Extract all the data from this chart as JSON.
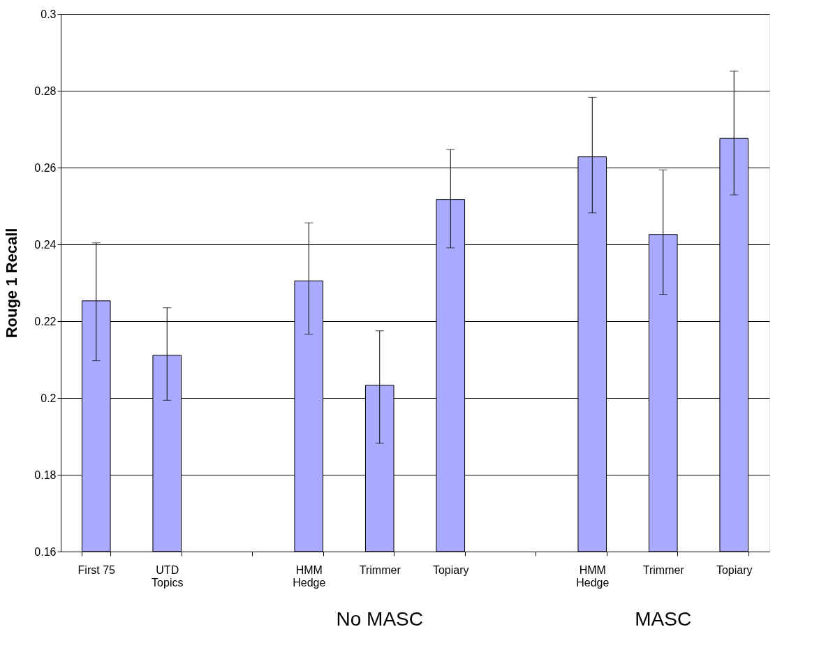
{
  "chart_data": {
    "type": "bar",
    "ylabel": "Rouge 1 Recall",
    "categories": [
      "First 75",
      "UTD Topics",
      null,
      "HMM Hedge",
      "Trimmer",
      "Topiary",
      null,
      "HMM Hedge",
      "Trimmer",
      "Topiary"
    ],
    "values": [
      0.2253,
      0.2111,
      null,
      0.2305,
      0.2033,
      0.2517,
      null,
      0.2628,
      0.2426,
      0.2676
    ],
    "errors": [
      [
        0.2097,
        0.2404
      ],
      [
        0.1994,
        0.2235
      ],
      null,
      [
        0.2166,
        0.2456
      ],
      [
        0.1882,
        0.2175
      ],
      [
        0.2391,
        0.2647
      ],
      null,
      [
        0.2482,
        0.2783
      ],
      [
        0.227,
        0.2594
      ],
      [
        0.2529,
        0.2851
      ]
    ],
    "color": "#aaaaff",
    "ylim": [
      0.16,
      0.3
    ],
    "yticks": [
      0.16,
      0.18,
      0.2,
      0.22,
      0.24,
      0.26,
      0.28,
      0.3
    ],
    "grid": "y",
    "annotations": [
      "No MASC",
      "MASC"
    ]
  }
}
